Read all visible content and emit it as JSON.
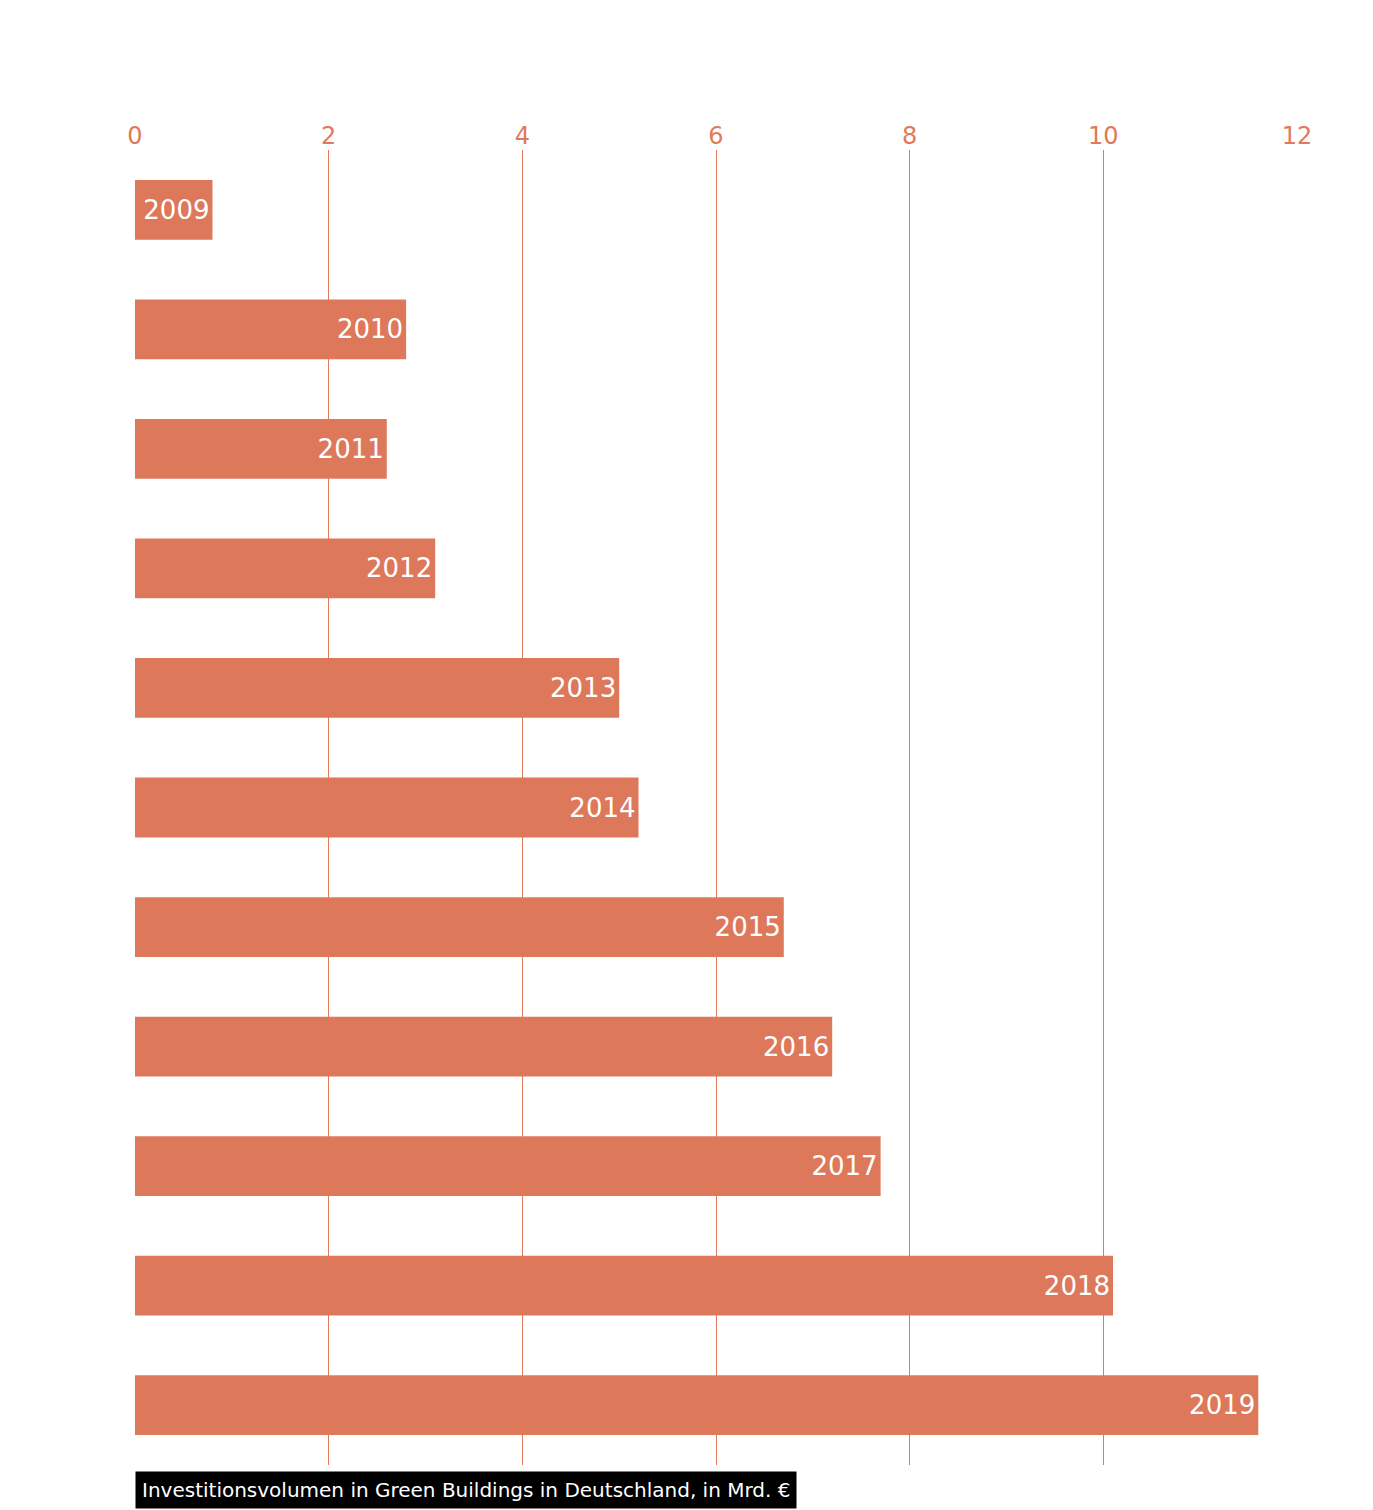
{
  "chart_data": {
    "type": "bar",
    "orientation": "horizontal",
    "title": "Investitionsvolumen in Green Buildings in Deutschland, in Mrd. €",
    "categories": [
      "2009",
      "2010",
      "2011",
      "2012",
      "2013",
      "2014",
      "2015",
      "2016",
      "2017",
      "2018",
      "2019"
    ],
    "values": [
      0.8,
      2.8,
      2.6,
      3.1,
      5.0,
      5.2,
      6.7,
      7.2,
      7.7,
      10.1,
      11.6
    ],
    "color": "#de785b",
    "xlim": [
      0,
      12
    ],
    "xticks": [
      0,
      2,
      4,
      6,
      8,
      10,
      12
    ],
    "grid": true,
    "tick_labels": "x",
    "data_labels": false
  }
}
